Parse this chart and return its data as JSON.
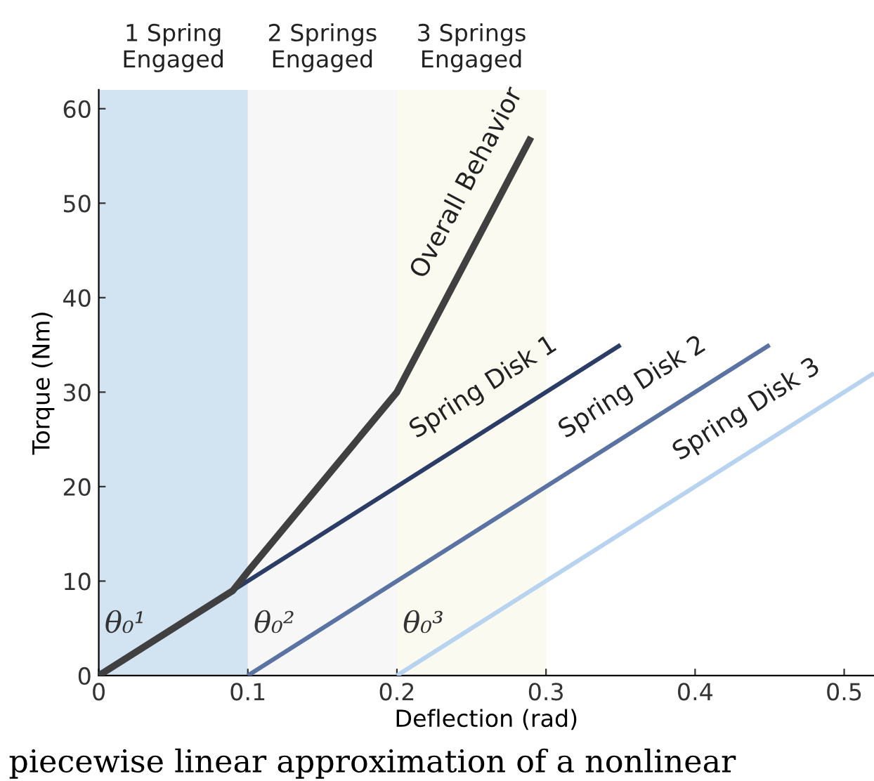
{
  "chart_data": {
    "type": "line",
    "xlabel": "Deflection (rad)",
    "ylabel": "Torque (Nm)",
    "xlim": [
      0,
      0.52
    ],
    "ylim": [
      0,
      62
    ],
    "xticks": [
      0,
      0.1,
      0.2,
      0.3,
      0.4,
      0.5
    ],
    "yticks": [
      0,
      10,
      20,
      30,
      40,
      50,
      60
    ],
    "grid": false,
    "legend": false,
    "series": [
      {
        "name": "Spring Disk 1",
        "color": "#2b3d66",
        "x": [
          0,
          0.35
        ],
        "values": [
          0,
          35
        ]
      },
      {
        "name": "Spring Disk 2",
        "color": "#5a73a3",
        "x": [
          0.1,
          0.45
        ],
        "values": [
          0,
          35
        ]
      },
      {
        "name": "Spring Disk 3",
        "color": "#b7d3ef",
        "x": [
          0.2,
          0.52
        ],
        "values": [
          0,
          32
        ]
      },
      {
        "name": "Overall Behavior",
        "color": "#404040",
        "x": [
          0,
          0.09,
          0.1,
          0.2,
          0.29
        ],
        "values": [
          0,
          9,
          11,
          30,
          57
        ]
      }
    ],
    "bands": [
      {
        "axis": "x",
        "from": 0,
        "to": 0.1,
        "label": "1 Spring\nEngaged",
        "color": "#d2e3f1"
      },
      {
        "axis": "x",
        "from": 0.1,
        "to": 0.2,
        "label": "2 Springs\nEngaged",
        "color": "#f7f7f7"
      },
      {
        "axis": "x",
        "from": 0.2,
        "to": 0.3,
        "label": "3 Springs\nEngaged",
        "color": "#fafaf0"
      }
    ],
    "annotations": [
      {
        "text": "θ₀¹",
        "x": 0,
        "y": 0
      },
      {
        "text": "θ₀²",
        "x": 0.1,
        "y": 0
      },
      {
        "text": "θ₀³",
        "x": 0.2,
        "y": 0
      },
      "piecewise linear approximation of a nonlinear"
    ]
  }
}
